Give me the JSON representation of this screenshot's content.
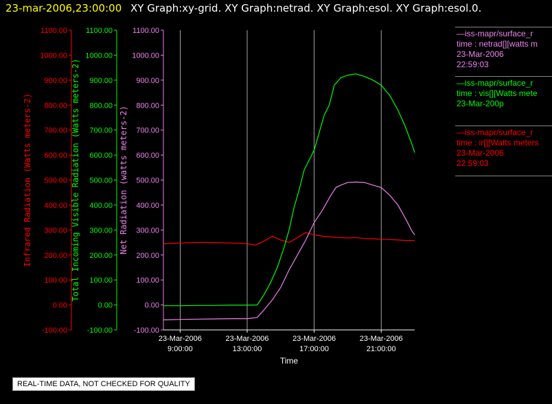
{
  "header": {
    "timestamp": "23-mar-2006,23:00:00",
    "graphs": "XY Graph:xy-grid.  XY Graph:netrad.  XY Graph:esol.  XY Graph:esol.0."
  },
  "notice": "REAL-TIME DATA, NOT CHECKED FOR QUALITY",
  "colors": {
    "ir": "#ff0000",
    "vis": "#00ff00",
    "net": "#ee82ee",
    "header_date": "#ffff00",
    "text": "#ffffff"
  },
  "legend": [
    {
      "line1": "—iss-mapr/surface_r",
      "line2": "time : netrad[][watts m",
      "line3": "23-Mar-2006",
      "line4": "22:59:03",
      "color": "#ee82ee"
    },
    {
      "line1": "—iss-mapr/surface_r",
      "line2": "time : vis[][Watts mete",
      "line3": "23-Mar-200p",
      "line4": "",
      "color": "#00ff00"
    },
    {
      "line1": "—iss-mapr/surface_r",
      "line2": "time : ir[][Watts meters",
      "line3": "23-Mar-2006",
      "line4": "22:59:03",
      "color": "#ff0000"
    }
  ],
  "chart_data": {
    "type": "line",
    "xlabel": "Time",
    "x_ticks": [
      {
        "date": "23-Mar-2006",
        "time": "9:00:00",
        "hour": 9
      },
      {
        "date": "23-Mar-2006",
        "time": "13:00:00",
        "hour": 13
      },
      {
        "date": "23-Mar-2006",
        "time": "17:00:00",
        "hour": 17
      },
      {
        "date": "23-Mar-2006",
        "time": "21:00:00",
        "hour": 21
      }
    ],
    "xlim_hours": [
      8,
      23
    ],
    "grid": "vertical",
    "y_axes": [
      {
        "label": "Infrared Radiation (Watts meters-2)",
        "color": "#ff0000",
        "ticks": [
          "1100.00",
          "1000.00",
          "900.00",
          "800.00",
          "700.00",
          "600.00",
          "500.00",
          "400.00",
          "300.00",
          "200.00",
          "100.00",
          "0.00",
          "-100.00"
        ],
        "ylim": [
          -100,
          1100
        ]
      },
      {
        "label": "Total Incoming Visible Radiation (Watts meters-2)",
        "color": "#00ff00",
        "ticks": [
          "1100.00",
          "1000.00",
          "900.00",
          "800.00",
          "700.00",
          "600.00",
          "500.00",
          "400.00",
          "300.00",
          "200.00",
          "100.00",
          "0.00",
          "-100.00"
        ],
        "ylim": [
          -100,
          1100
        ]
      },
      {
        "label": "Net Radiation (watts meters-2)",
        "color": "#ee82ee",
        "ticks": [
          "1100.00",
          "1000.00",
          "900.00",
          "800.00",
          "700.00",
          "600.00",
          "500.00",
          "400.00",
          "300.00",
          "200.00",
          "100.00",
          "0.00",
          "-100.00"
        ],
        "ylim": [
          -100,
          1100
        ]
      }
    ],
    "series": [
      {
        "name": "ir",
        "color": "#ff0000",
        "x": [
          8,
          9,
          10,
          11,
          12,
          13,
          13.5,
          14,
          14.5,
          15,
          15.5,
          16,
          16.5,
          17,
          17.5,
          18,
          18.5,
          19,
          19.5,
          20,
          20.5,
          21,
          21.5,
          22,
          22.5,
          23
        ],
        "y": [
          245,
          248,
          250,
          250,
          248,
          245,
          240,
          255,
          275,
          260,
          250,
          270,
          290,
          280,
          275,
          272,
          270,
          268,
          270,
          266,
          265,
          263,
          262,
          260,
          258,
          258
        ]
      },
      {
        "name": "vis",
        "color": "#00ff00",
        "x": [
          8,
          9,
          10,
          11,
          12,
          13,
          13.6,
          14,
          14.4,
          14.8,
          15.2,
          15.5,
          15.8,
          16.1,
          16.4,
          16.7,
          17,
          17.3,
          17.6,
          17.9,
          18.2,
          18.6,
          19,
          19.5,
          20,
          20.5,
          21,
          21.5,
          22,
          22.4,
          22.8,
          23
        ],
        "y": [
          -3,
          -3,
          -2,
          -2,
          -1,
          -1,
          0,
          40,
          90,
          150,
          230,
          300,
          390,
          460,
          540,
          580,
          620,
          690,
          760,
          800,
          880,
          910,
          920,
          925,
          915,
          900,
          880,
          840,
          780,
          720,
          650,
          610
        ]
      },
      {
        "name": "net",
        "color": "#ee82ee",
        "x": [
          8,
          9,
          10,
          11,
          12,
          13,
          13.6,
          14,
          14.5,
          15,
          15.5,
          16,
          16.5,
          17,
          17.5,
          18,
          18.3,
          18.6,
          19,
          19.5,
          20,
          20.5,
          21,
          21.5,
          22,
          22.5,
          22.8,
          23
        ],
        "y": [
          -60,
          -58,
          -57,
          -56,
          -55,
          -55,
          -50,
          -20,
          20,
          70,
          140,
          200,
          260,
          330,
          380,
          440,
          470,
          480,
          490,
          492,
          490,
          480,
          470,
          440,
          400,
          340,
          300,
          280
        ]
      }
    ]
  }
}
